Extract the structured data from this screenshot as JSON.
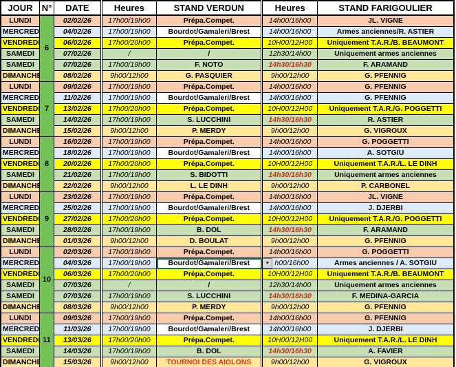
{
  "table": {
    "header": [
      "JOUR",
      "N°",
      "DATE",
      "Heures",
      "STAND VERDUN",
      "Heures",
      "STAND FARIGOULIER"
    ],
    "weeks": [
      {
        "num": "6",
        "rows": 6
      },
      {
        "num": "7",
        "rows": 5
      },
      {
        "num": "8",
        "rows": 5
      },
      {
        "num": "9",
        "rows": 5
      },
      {
        "num": "10",
        "rows": 6
      },
      {
        "num": "11",
        "rows": 5
      }
    ],
    "rows": [
      {
        "day": "LUNDI",
        "date": "02/02/26",
        "h1": "17h00/19h00",
        "verdun": "Prépa.Compet.",
        "h2": "14h00/16h00",
        "farigoulier": "JL. VIGNE",
        "style": "lundi"
      },
      {
        "day": "MERCREDI",
        "date": "04/02/26",
        "h1": "17h00/19h00",
        "verdun": "Bourdot/Gamaleri/Brest",
        "h2": "14h00/16h00",
        "farigoulier": "Armes anciennes/R. ASTIER",
        "style": "mercredi"
      },
      {
        "day": "VENDREDI",
        "date": "06/02/26",
        "h1": "17h00/20h00",
        "verdun": "Prépa.Compet.",
        "h2": "10H00/12H00",
        "farigoulier": "Uniquement T.A.R./B. BEAUMONT",
        "style": "vendredi"
      },
      {
        "day": "SAMEDI",
        "date": "07/02/26",
        "h1": "/",
        "verdun": "/",
        "h2": "12h30/14h00",
        "farigoulier": "Uniquement armes anciennes",
        "style": "samedi"
      },
      {
        "day": "SAMEDI",
        "date": "07/02/26",
        "h1": "17h00/19h00",
        "verdun": "F. NOTO",
        "h2": "14h30/16h30",
        "farigoulier": "F. ARAMAND",
        "style": "samedi",
        "h2_red": true
      },
      {
        "day": "DIMANCHE",
        "date": "08/02/26",
        "h1": "9h00/12h00",
        "verdun": "G. PASQUIER",
        "h2": "9h00/12h00",
        "farigoulier": "G. PFENNIG",
        "style": "dimanche"
      },
      {
        "day": "LUNDI",
        "date": "09/02/26",
        "h1": "17h00/19h00",
        "verdun": "Prépa.Compet.",
        "h2": "14h00/16h00",
        "farigoulier": "G. PFENNIG",
        "style": "lundi"
      },
      {
        "day": "MERCREDI",
        "date": "11/02/26",
        "h1": "17h00/19h00",
        "verdun": "Bourdot/Gamaleri/Brest",
        "h2": "14h00/16h00",
        "farigoulier": "G. PFENNIG",
        "style": "mercredi"
      },
      {
        "day": "VENDREDI",
        "date": "13/02/26",
        "h1": "17h00/20h00",
        "verdun": "Prépa.Compet.",
        "h2": "10H00/12H00",
        "farigoulier": "Uniquement T.A.R./G. POGGETTI",
        "style": "vendredi"
      },
      {
        "day": "SAMEDI",
        "date": "14/02/26",
        "h1": "17h00/19h00",
        "verdun": "S. LUCCHINI",
        "h2": "14h30/16h30",
        "farigoulier": "R. ASTIER",
        "style": "samedi",
        "h2_red": true
      },
      {
        "day": "DIMANCHE",
        "date": "15/02/26",
        "h1": "9h00/12h00",
        "verdun": "P. MERDY",
        "h2": "9h00/12h00",
        "farigoulier": "G. VIGROUX",
        "style": "dimanche"
      },
      {
        "day": "LUNDI",
        "date": "16/02/26",
        "h1": "17h00/19h00",
        "verdun": "Prépa.Compet.",
        "h2": "14h00/16h00",
        "farigoulier": "G. POGGETTI",
        "style": "lundi"
      },
      {
        "day": "MERCREDI",
        "date": "18/02/26",
        "h1": "17h00/19h00",
        "verdun": "Bourdot/Gamaleri/Brest",
        "h2": "14h00/16h00",
        "farigoulier": "A. SOTGIU",
        "style": "mercredi"
      },
      {
        "day": "VENDREDI",
        "date": "20/02/26",
        "h1": "17h00/20h00",
        "verdun": "Prépa.Compet.",
        "h2": "10H00/12H00",
        "farigoulier": "Uniquement T.A.R./L. LE DINH",
        "style": "vendredi"
      },
      {
        "day": "SAMEDI",
        "date": "21/02/26",
        "h1": "17h00/19h00",
        "verdun": "S. BIDOTTI",
        "h2": "14h30/16h30",
        "farigoulier": "Uniquement armes anciennes",
        "style": "samedi",
        "h2_red": true
      },
      {
        "day": "DIMANCHE",
        "date": "22/02/26",
        "h1": "9h00/12h00",
        "verdun": "L. LE DINH",
        "h2": "9h00/12h00",
        "farigoulier": "P. CARBONEL",
        "style": "dimanche"
      },
      {
        "day": "LUNDI",
        "date": "23/02/26",
        "h1": "17h00/19h00",
        "verdun": "Prépa.Compet.",
        "h2": "14h00/16h00",
        "farigoulier": "JL. VIGNE",
        "style": "lundi"
      },
      {
        "day": "MERCREDI",
        "date": "25/02/26",
        "h1": "17h00/19h00",
        "verdun": "Bourdot/Gamaleri/Brest",
        "h2": "14h00/16h00",
        "farigoulier": "J. DJERBI",
        "style": "mercredi"
      },
      {
        "day": "VENDREDI",
        "date": "27/02/26",
        "h1": "17h00/20h00",
        "verdun": "Prépa.Compet.",
        "h2": "10H00/12H00",
        "farigoulier": "Uniquement T.A.R./G. POGGETTI",
        "style": "vendredi"
      },
      {
        "day": "SAMEDI",
        "date": "28/02/26",
        "h1": "17h00/19h00",
        "verdun": "B. DOL",
        "h2": "14h30/16h30",
        "farigoulier": "F. ARAMAND",
        "style": "samedi",
        "h2_red": true
      },
      {
        "day": "DIMANCHE",
        "date": "01/03/26",
        "h1": "9h00/12h00",
        "verdun": "D. BOULAT",
        "h2": "9h00/12h00",
        "farigoulier": "G. PFENNIG",
        "style": "dimanche"
      },
      {
        "day": "LUNDI",
        "date": "02/03/26",
        "h1": "17h00/19h00",
        "verdun": "Prépa.Compet.",
        "h2": "14h00/16h00",
        "farigoulier": "G. POGGETTI",
        "style": "lundi"
      },
      {
        "day": "MERCREDI",
        "date": "04/03/26",
        "h1": "17h00/19h00",
        "verdun": "Bourdot/Gamaleri/Brest",
        "h2": "h00/16h00",
        "farigoulier": "Armes anciennes / A. SOTGIU",
        "style": "mercredi",
        "selected": true,
        "dropdown": true
      },
      {
        "day": "VENDREDI",
        "date": "06/03/26",
        "h1": "17h00/20h00",
        "verdun": "Prépa.Compet.",
        "h2": "10H00/12H00",
        "farigoulier": "Uniquement T.A.R./B. BEAUMONT",
        "style": "vendredi"
      },
      {
        "day": "SAMEDI",
        "date": "07/03/26",
        "h1": "/",
        "verdun": "/",
        "h2": "12h30/14h00",
        "farigoulier": "Uniquement armes anciennes",
        "style": "samedi"
      },
      {
        "day": "SAMEDI",
        "date": "07/03/26",
        "h1": "17h00/19h00",
        "verdun": "S. LUCCHINI",
        "h2": "14h30/16h30",
        "farigoulier": "F. MEDINA-GARCIA",
        "style": "samedi",
        "h2_red": true
      },
      {
        "day": "DIMANCHE",
        "date": "08/03/26",
        "h1": "9h00/12h00",
        "verdun": "P. MERDY",
        "h2": "9h00/12h00",
        "farigoulier": "G. PFENNIG",
        "style": "dimanche"
      },
      {
        "day": "LUNDI",
        "date": "09/03/26",
        "h1": "17h00/19h00",
        "verdun": "Prépa.Compet.",
        "h2": "14h00/16h00",
        "farigoulier": "G. PFENNIG",
        "style": "lundi"
      },
      {
        "day": "MERCREDI",
        "date": "11/03/26",
        "h1": "17h00/19h00",
        "verdun": "Bourdot/Gamaleri/Brest",
        "h2": "14h00/16h00",
        "farigoulier": "J. DJERBI",
        "style": "mercredi"
      },
      {
        "day": "VENDREDI",
        "date": "13/03/26",
        "h1": "17h00/20h00",
        "verdun": "Prépa.Compet.",
        "h2": "10H00/12H00",
        "farigoulier": "Uniquement T.A.R./L. LE DINH",
        "style": "vendredi"
      },
      {
        "day": "SAMEDI",
        "date": "14/03/26",
        "h1": "17h00/19h00",
        "verdun": "B. DOL",
        "h2": "14h30/16h30",
        "farigoulier": "A. FAVIER",
        "style": "samedi",
        "h2_red": true
      },
      {
        "day": "DIMANCHE",
        "date": "15/03/26",
        "h1": "9h00/12h00",
        "verdun": "TOURNOI DES AIGLONS",
        "h2": "9h00/12h00",
        "farigoulier": "G. VIGROUX",
        "style": "dimanche",
        "verdun_red": true
      }
    ]
  },
  "colors": {
    "lundi": "#F8CBAD",
    "mercredi": "#DDEBF7",
    "vendredi": "#FFFF00",
    "samedi": "#C6E0B4",
    "dimanche": "#FFE699",
    "verdun_mercredi_bg": "#FFFFFF",
    "week_green": "#74C257",
    "red_time": "#C03020",
    "red_event": "#E2391B",
    "selection_border": "#217346"
  },
  "icons": {
    "dropdown_arrow": "▼"
  }
}
